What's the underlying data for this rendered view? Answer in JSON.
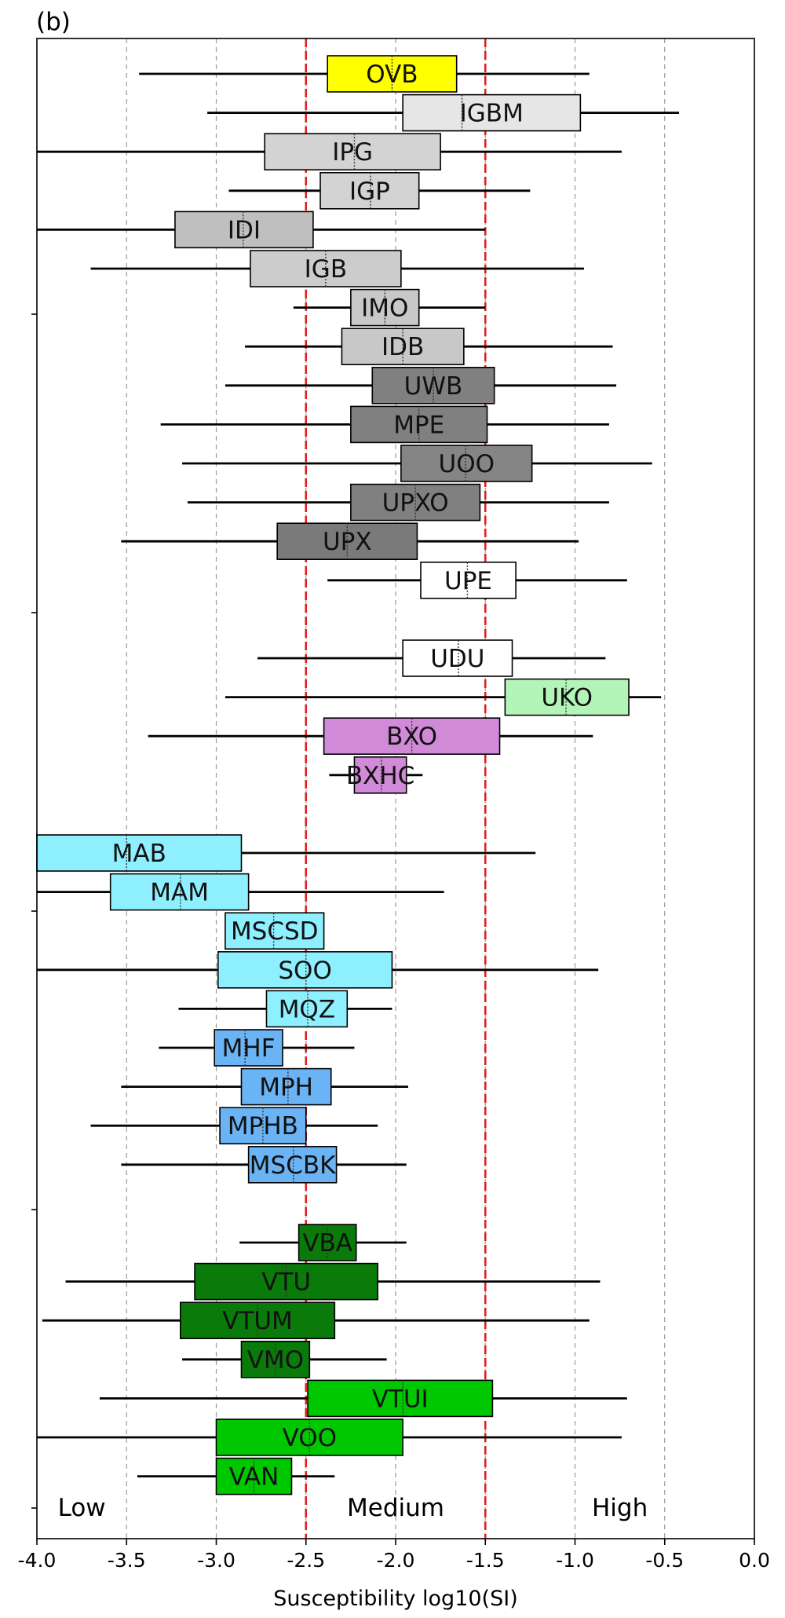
{
  "chart_data": {
    "type": "boxplot-horizontal",
    "panel_label": "(b)",
    "xlabel": "Susceptibility log10(SI)",
    "xlim": [
      -4.0,
      0.0
    ],
    "xticks": [
      -4.0,
      -3.5,
      -3.0,
      -2.5,
      -2.0,
      -1.5,
      -1.0,
      -0.5,
      0.0
    ],
    "xtick_labels": [
      "-4.0",
      "-3.5",
      "-3.0",
      "-2.5",
      "-2.0",
      "-1.5",
      "-1.0",
      "-0.5",
      "0.0"
    ],
    "grid": "vertical dashed at each x tick",
    "reference_lines": [
      -2.5,
      -1.5
    ],
    "zones": [
      {
        "label": "Low",
        "x": -3.75
      },
      {
        "label": "Medium",
        "x": -2.0
      },
      {
        "label": "High",
        "x": -0.75
      }
    ],
    "groups": [
      {
        "name": "OVB",
        "row": 0,
        "whisker_low": -3.43,
        "q1": -2.38,
        "median": -2.02,
        "q3": -1.66,
        "whisker_high": -0.92,
        "color": "#ffff00"
      },
      {
        "name": "IGBM",
        "row": 1,
        "whisker_low": -3.05,
        "q1": -1.96,
        "median": -1.63,
        "q3": -0.97,
        "whisker_high": -0.42,
        "color": "#e6e6e6"
      },
      {
        "name": "IPG",
        "row": 2,
        "whisker_low": -4.0,
        "q1": -2.73,
        "median": -2.23,
        "q3": -1.75,
        "whisker_high": -0.74,
        "color": "#d3d3d3"
      },
      {
        "name": "IGP",
        "row": 3,
        "whisker_low": -2.93,
        "q1": -2.42,
        "median": -2.14,
        "q3": -1.87,
        "whisker_high": -1.25,
        "color": "#d3d3d3"
      },
      {
        "name": "IDI",
        "row": 4,
        "whisker_low": -4.0,
        "q1": -3.23,
        "median": -2.85,
        "q3": -2.46,
        "whisker_high": -1.5,
        "color": "#bfbfbf"
      },
      {
        "name": "IGB",
        "row": 5,
        "whisker_low": -3.7,
        "q1": -2.81,
        "median": -2.39,
        "q3": -1.97,
        "whisker_high": -0.95,
        "color": "#cccccc"
      },
      {
        "name": "IMO",
        "row": 6,
        "whisker_low": -2.57,
        "q1": -2.25,
        "median": -2.06,
        "q3": -1.87,
        "whisker_high": -1.5,
        "color": "#c8c8c8"
      },
      {
        "name": "IDB",
        "row": 7,
        "whisker_low": -2.84,
        "q1": -2.3,
        "median": -1.96,
        "q3": -1.62,
        "whisker_high": -0.79,
        "color": "#c8c8c8"
      },
      {
        "name": "UWB",
        "row": 8,
        "whisker_low": -2.95,
        "q1": -2.13,
        "median": -1.79,
        "q3": -1.45,
        "whisker_high": -0.77,
        "color": "#808080"
      },
      {
        "name": "MPE",
        "row": 9,
        "whisker_low": -3.31,
        "q1": -2.25,
        "median": -1.87,
        "q3": -1.49,
        "whisker_high": -0.81,
        "color": "#808080"
      },
      {
        "name": "UOO",
        "row": 10,
        "whisker_low": -3.19,
        "q1": -1.97,
        "median": -1.61,
        "q3": -1.24,
        "whisker_high": -0.57,
        "color": "#858585"
      },
      {
        "name": "UPXO",
        "row": 11,
        "whisker_low": -3.16,
        "q1": -2.25,
        "median": -1.89,
        "q3": -1.53,
        "whisker_high": -0.81,
        "color": "#808080"
      },
      {
        "name": "UPX",
        "row": 12,
        "whisker_low": -3.53,
        "q1": -2.66,
        "median": -2.27,
        "q3": -1.88,
        "whisker_high": -0.98,
        "color": "#7a7a7a"
      },
      {
        "name": "UPE",
        "row": 13,
        "whisker_low": -2.38,
        "q1": -1.86,
        "median": -1.6,
        "q3": -1.33,
        "whisker_high": -0.71,
        "color": "#ffffff"
      },
      {
        "name": "UDU",
        "row": 15,
        "whisker_low": -2.77,
        "q1": -1.96,
        "median": -1.65,
        "q3": -1.35,
        "whisker_high": -0.83,
        "color": "#ffffff"
      },
      {
        "name": "UKO",
        "row": 16,
        "whisker_low": -2.95,
        "q1": -1.39,
        "median": -1.05,
        "q3": -0.7,
        "whisker_high": -0.52,
        "color": "#b3f5b8"
      },
      {
        "name": "BXO",
        "row": 17,
        "whisker_low": -3.38,
        "q1": -2.4,
        "median": -1.91,
        "q3": -1.42,
        "whisker_high": -0.9,
        "color": "#d08ad8"
      },
      {
        "name": "BXHC",
        "row": 18,
        "whisker_low": -2.37,
        "q1": -2.23,
        "median": -2.08,
        "q3": -1.94,
        "whisker_high": -1.85,
        "color": "#d08ad8"
      },
      {
        "name": "MAB",
        "row": 20,
        "whisker_low": -4.0,
        "q1": -4.0,
        "median": -3.5,
        "q3": -2.86,
        "whisker_high": -1.22,
        "color": "#8ef0ff"
      },
      {
        "name": "MAM",
        "row": 21,
        "whisker_low": -4.0,
        "q1": -3.59,
        "median": -3.2,
        "q3": -2.82,
        "whisker_high": -1.73,
        "color": "#8ef0ff"
      },
      {
        "name": "MSCSD",
        "row": 22,
        "whisker_low": -2.95,
        "q1": -2.95,
        "median": -2.68,
        "q3": -2.4,
        "whisker_high": -2.4,
        "color": "#8ef0ff"
      },
      {
        "name": "SOO",
        "row": 23,
        "whisker_low": -4.0,
        "q1": -2.99,
        "median": -2.5,
        "q3": -2.02,
        "whisker_high": -0.87,
        "color": "#8ef0ff"
      },
      {
        "name": "MQZ",
        "row": 24,
        "whisker_low": -3.21,
        "q1": -2.72,
        "median": -2.49,
        "q3": -2.27,
        "whisker_high": -2.02,
        "color": "#8ef0ff"
      },
      {
        "name": "MHF",
        "row": 25,
        "whisker_low": -3.32,
        "q1": -3.01,
        "median": -2.84,
        "q3": -2.63,
        "whisker_high": -2.23,
        "color": "#6ab4f5"
      },
      {
        "name": "MPH",
        "row": 26,
        "whisker_low": -3.53,
        "q1": -2.86,
        "median": -2.6,
        "q3": -2.36,
        "whisker_high": -1.93,
        "color": "#6ab4f5"
      },
      {
        "name": "MPHB",
        "row": 27,
        "whisker_low": -3.7,
        "q1": -2.98,
        "median": -2.74,
        "q3": -2.5,
        "whisker_high": -2.1,
        "color": "#6ab4f5"
      },
      {
        "name": "MSCBK",
        "row": 28,
        "whisker_low": -3.53,
        "q1": -2.82,
        "median": -2.57,
        "q3": -2.33,
        "whisker_high": -1.94,
        "color": "#6ab4f5"
      },
      {
        "name": "VBA",
        "row": 30,
        "whisker_low": -2.87,
        "q1": -2.54,
        "median": -2.38,
        "q3": -2.22,
        "whisker_high": -1.94,
        "color": "#0a7a0a"
      },
      {
        "name": "VTU",
        "row": 31,
        "whisker_low": -3.84,
        "q1": -3.12,
        "median": -2.61,
        "q3": -2.1,
        "whisker_high": -0.86,
        "color": "#0a7a0a"
      },
      {
        "name": "VTUM",
        "row": 32,
        "whisker_low": -3.97,
        "q1": -3.2,
        "median": -2.77,
        "q3": -2.34,
        "whisker_high": -0.92,
        "color": "#0a7a0a"
      },
      {
        "name": "VMO",
        "row": 33,
        "whisker_low": -3.19,
        "q1": -2.86,
        "median": -2.67,
        "q3": -2.48,
        "whisker_high": -2.05,
        "color": "#0a7a0a"
      },
      {
        "name": "VTUI",
        "row": 34,
        "whisker_low": -3.65,
        "q1": -2.49,
        "median": -1.96,
        "q3": -1.46,
        "whisker_high": -0.71,
        "color": "#00c800"
      },
      {
        "name": "VOO",
        "row": 35,
        "whisker_low": -4.0,
        "q1": -3.0,
        "median": -2.48,
        "q3": -1.96,
        "whisker_high": -0.74,
        "color": "#00c800"
      },
      {
        "name": "VAN",
        "row": 36,
        "whisker_low": -3.44,
        "q1": -3.0,
        "median": -2.79,
        "q3": -2.58,
        "whisker_high": -2.34,
        "color": "#00c800"
      }
    ],
    "label_colors": {
      "VBA": "#000000"
    }
  }
}
